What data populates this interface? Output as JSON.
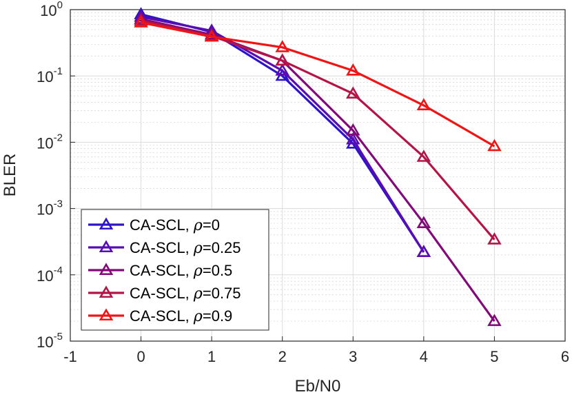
{
  "chart_data": {
    "type": "line",
    "yscale": "log",
    "xlabel": "Eb/N0",
    "ylabel": "BLER",
    "xlim": [
      -1,
      6
    ],
    "ylim_exponents": [
      -5,
      0
    ],
    "x_ticks": [
      "-1",
      "0",
      "1",
      "2",
      "3",
      "4",
      "5",
      "6"
    ],
    "y_ticks": [
      {
        "base": "10",
        "exp": "0"
      },
      {
        "base": "10",
        "exp": "-1"
      },
      {
        "base": "10",
        "exp": "-2"
      },
      {
        "base": "10",
        "exp": "-3"
      },
      {
        "base": "10",
        "exp": "-4"
      },
      {
        "base": "10",
        "exp": "-5"
      }
    ],
    "grid": true,
    "minor_grid": true,
    "legend_position": "bottom-left",
    "series": [
      {
        "name": "CA-SCL, ρ=0",
        "label_prefix": "CA-SCL, ",
        "rho_symbol": "ρ",
        "rho_value": "=0",
        "color": "#2d14c8",
        "x": [
          0,
          1,
          2,
          3,
          4
        ],
        "y": [
          0.85,
          0.46,
          0.1,
          0.0095,
          0.00022
        ]
      },
      {
        "name": "CA-SCL, ρ=0.25",
        "label_prefix": "CA-SCL, ",
        "rho_symbol": "ρ",
        "rho_value": "=0.25",
        "color": "#5a0cb4",
        "x": [
          0,
          1,
          2,
          3,
          4
        ],
        "y": [
          0.78,
          0.48,
          0.12,
          0.011,
          0.00022
        ]
      },
      {
        "name": "CA-SCL, ρ=0.5",
        "label_prefix": "CA-SCL, ",
        "rho_symbol": "ρ",
        "rho_value": "=0.5",
        "color": "#820a78",
        "x": [
          0,
          1,
          2,
          3,
          4,
          5
        ],
        "y": [
          0.72,
          0.42,
          0.17,
          0.015,
          0.0006,
          2e-05
        ]
      },
      {
        "name": "CA-SCL, ρ=0.75",
        "label_prefix": "CA-SCL, ",
        "rho_symbol": "ρ",
        "rho_value": "=0.75",
        "color": "#b41446",
        "x": [
          0,
          1,
          2,
          3,
          4,
          5
        ],
        "y": [
          0.68,
          0.4,
          0.17,
          0.054,
          0.006,
          0.00034
        ]
      },
      {
        "name": "CA-SCL, ρ=0.9",
        "label_prefix": "CA-SCL, ",
        "rho_symbol": "ρ",
        "rho_value": "=0.9",
        "color": "#f01414",
        "x": [
          0,
          1,
          2,
          3,
          4,
          5
        ],
        "y": [
          0.64,
          0.39,
          0.27,
          0.12,
          0.036,
          0.0087
        ]
      }
    ]
  }
}
